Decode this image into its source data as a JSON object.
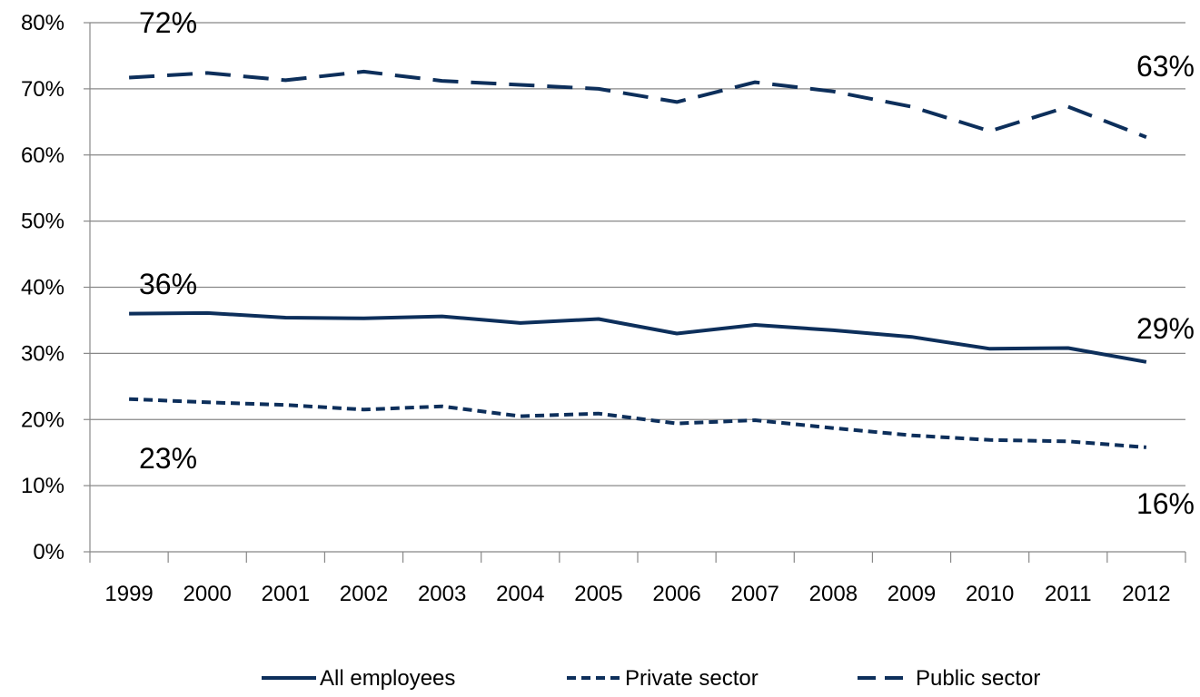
{
  "chart_data": {
    "type": "line",
    "categories": [
      "1999",
      "2000",
      "2001",
      "2002",
      "2003",
      "2004",
      "2005",
      "2006",
      "2007",
      "2008",
      "2009",
      "2010",
      "2011",
      "2012"
    ],
    "ylim": [
      0,
      80
    ],
    "yticks": [
      "0%",
      "10%",
      "20%",
      "30%",
      "40%",
      "50%",
      "60%",
      "70%",
      "80%"
    ],
    "grid": true,
    "legend_position": "bottom",
    "series": [
      {
        "name": "All employees",
        "style": "solid",
        "values": [
          36.0,
          36.1,
          35.4,
          35.3,
          35.6,
          34.6,
          35.2,
          33.0,
          34.3,
          33.5,
          32.5,
          30.7,
          30.8,
          28.7
        ],
        "labels": {
          "first": "36%",
          "last": "29%"
        }
      },
      {
        "name": "Private sector",
        "style": "short-dash",
        "values": [
          23.1,
          22.6,
          22.2,
          21.5,
          22.0,
          20.5,
          20.9,
          19.4,
          19.9,
          18.7,
          17.6,
          16.9,
          16.7,
          15.8
        ],
        "labels": {
          "first": "23%",
          "last": "16%"
        }
      },
      {
        "name": "Public sector",
        "style": "long-dash",
        "values": [
          71.7,
          72.4,
          71.3,
          72.6,
          71.2,
          70.6,
          70.0,
          68.0,
          71.0,
          69.6,
          67.3,
          63.6,
          67.3,
          62.7
        ],
        "labels": {
          "first": "72%",
          "last": "63%"
        }
      }
    ],
    "colors": {
      "line": "#0d2f5b",
      "grid": "#888888",
      "axis": "#888888"
    }
  }
}
